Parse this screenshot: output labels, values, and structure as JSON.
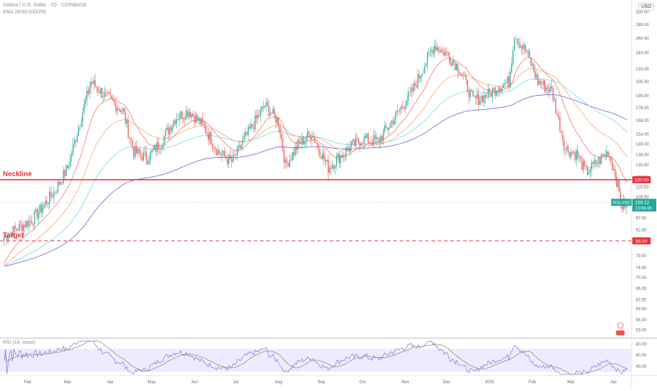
{
  "header": {
    "symbol_line": "Solana / U.S. Dollar · 1D · COINBASE",
    "ema_line": "EMA 20/50/100/200",
    "currency_button": "USD"
  },
  "rsi_panel": {
    "title": "RSI (14, close)",
    "ticks": [
      "80.00",
      "60.00",
      "40.00"
    ]
  },
  "annotations": {
    "neckline": {
      "label": "Neckline",
      "price": 120,
      "badge": "120.00"
    },
    "target": {
      "label": "Target",
      "price": 86,
      "badge": "86.00"
    },
    "last_price": {
      "symbol": "SOLUSD",
      "price": "106.12",
      "countdown": "10:04:49"
    }
  },
  "colors": {
    "up": "#26a69a",
    "down": "#ef5350",
    "neckline": "#e8333d",
    "ema20": "#f0857a",
    "ema50": "#f7b27a",
    "ema100": "#7ae0e8",
    "ema200": "#7a6fd6",
    "rsi_line": "#8c7ee0",
    "rsi_ma": "#8ba678",
    "rsi_band": "#efeaff"
  },
  "chart_data": {
    "type": "candlestick",
    "price_scale": "log",
    "x_tick_labels": [
      "Feb",
      "Mar",
      "Apr",
      "May",
      "Jun",
      "Jul",
      "Aug",
      "Sep",
      "Oct",
      "Nov",
      "Dec",
      "2025",
      "Feb",
      "Mar",
      "Apr"
    ],
    "y_tick_labels": [
      "300.00",
      "280.00",
      "260.00",
      "240.00",
      "220.00",
      "205.00",
      "190.00",
      "178.00",
      "166.00",
      "154.00",
      "146.00",
      "138.00",
      "130.50",
      "122.00",
      "115.50",
      "109.50",
      "103.50",
      "97.50",
      "91.50",
      "86.00",
      "79.50",
      "74.50",
      "70.50",
      "66.50",
      "62.50",
      "59.50",
      "56.00",
      "53.00"
    ],
    "price_path": [
      {
        "date": "2024-01-15",
        "close": 88
      },
      {
        "date": "2024-02-05",
        "close": 97
      },
      {
        "date": "2024-02-20",
        "close": 112
      },
      {
        "date": "2024-03-01",
        "close": 128
      },
      {
        "date": "2024-03-10",
        "close": 165
      },
      {
        "date": "2024-03-18",
        "close": 205
      },
      {
        "date": "2024-03-28",
        "close": 190
      },
      {
        "date": "2024-04-10",
        "close": 175
      },
      {
        "date": "2024-04-18",
        "close": 140
      },
      {
        "date": "2024-04-28",
        "close": 135
      },
      {
        "date": "2024-05-08",
        "close": 148
      },
      {
        "date": "2024-05-18",
        "close": 168
      },
      {
        "date": "2024-05-28",
        "close": 175
      },
      {
        "date": "2024-06-08",
        "close": 160
      },
      {
        "date": "2024-06-18",
        "close": 140
      },
      {
        "date": "2024-06-28",
        "close": 132
      },
      {
        "date": "2024-07-10",
        "close": 155
      },
      {
        "date": "2024-07-22",
        "close": 180
      },
      {
        "date": "2024-08-01",
        "close": 165
      },
      {
        "date": "2024-08-06",
        "close": 130
      },
      {
        "date": "2024-08-15",
        "close": 145
      },
      {
        "date": "2024-08-25",
        "close": 155
      },
      {
        "date": "2024-09-06",
        "close": 128
      },
      {
        "date": "2024-09-20",
        "close": 142
      },
      {
        "date": "2024-10-01",
        "close": 150
      },
      {
        "date": "2024-10-12",
        "close": 148
      },
      {
        "date": "2024-10-25",
        "close": 170
      },
      {
        "date": "2024-11-06",
        "close": 195
      },
      {
        "date": "2024-11-15",
        "close": 225
      },
      {
        "date": "2024-11-22",
        "close": 250
      },
      {
        "date": "2024-12-01",
        "close": 238
      },
      {
        "date": "2024-12-10",
        "close": 220
      },
      {
        "date": "2024-12-20",
        "close": 185
      },
      {
        "date": "2024-12-30",
        "close": 190
      },
      {
        "date": "2025-01-08",
        "close": 200
      },
      {
        "date": "2025-01-15",
        "close": 205
      },
      {
        "date": "2025-01-19",
        "close": 265
      },
      {
        "date": "2025-01-28",
        "close": 240
      },
      {
        "date": "2025-02-05",
        "close": 205
      },
      {
        "date": "2025-02-15",
        "close": 195
      },
      {
        "date": "2025-02-25",
        "close": 142
      },
      {
        "date": "2025-03-05",
        "close": 138
      },
      {
        "date": "2025-03-12",
        "close": 125
      },
      {
        "date": "2025-03-20",
        "close": 132
      },
      {
        "date": "2025-03-28",
        "close": 140
      },
      {
        "date": "2025-04-02",
        "close": 124
      },
      {
        "date": "2025-04-07",
        "close": 104
      },
      {
        "date": "2025-04-11",
        "close": 106.12
      }
    ],
    "levels": [
      {
        "name": "Neckline",
        "price": 120
      },
      {
        "name": "Target",
        "price": 86
      }
    ],
    "last_price": 106.12,
    "rsi_range": [
      25,
      85
    ],
    "grid": false,
    "legend": "top-left"
  }
}
